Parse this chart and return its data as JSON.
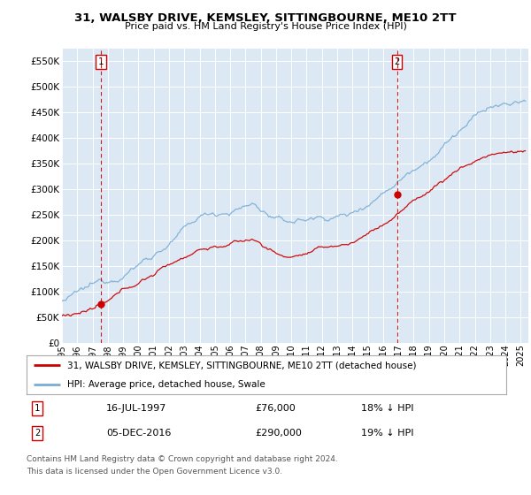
{
  "title": "31, WALSBY DRIVE, KEMSLEY, SITTINGBOURNE, ME10 2TT",
  "subtitle": "Price paid vs. HM Land Registry's House Price Index (HPI)",
  "ylim": [
    0,
    575000
  ],
  "xlim_start": 1995.0,
  "xlim_end": 2025.5,
  "yticks": [
    0,
    50000,
    100000,
    150000,
    200000,
    250000,
    300000,
    350000,
    400000,
    450000,
    500000,
    550000
  ],
  "ytick_labels": [
    "£0",
    "£50K",
    "£100K",
    "£150K",
    "£200K",
    "£250K",
    "£300K",
    "£350K",
    "£400K",
    "£450K",
    "£500K",
    "£550K"
  ],
  "plot_bg_color": "#dce9f5",
  "hpi_color": "#7aadd4",
  "price_color": "#cc0000",
  "marker_color": "#cc0000",
  "dashed_line_color": "#cc0000",
  "sale1_year": 1997.54,
  "sale1_price": 76000,
  "sale2_year": 2016.92,
  "sale2_price": 290000,
  "legend_line1": "31, WALSBY DRIVE, KEMSLEY, SITTINGBOURNE, ME10 2TT (detached house)",
  "legend_line2": "HPI: Average price, detached house, Swale",
  "annot1_date": "16-JUL-1997",
  "annot1_price": "£76,000",
  "annot1_hpi": "18% ↓ HPI",
  "annot1_num": "1",
  "annot2_date": "05-DEC-2016",
  "annot2_price": "£290,000",
  "annot2_hpi": "19% ↓ HPI",
  "annot2_num": "2",
  "footer1": "Contains HM Land Registry data © Crown copyright and database right 2024.",
  "footer2": "This data is licensed under the Open Government Licence v3.0."
}
